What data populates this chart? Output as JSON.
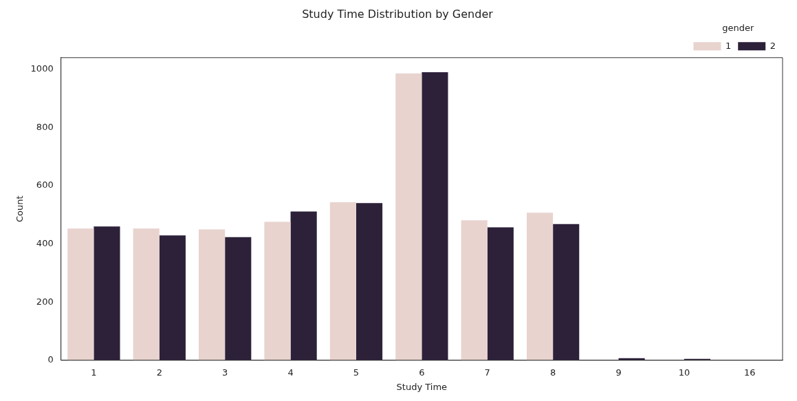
{
  "chart_data": {
    "type": "bar",
    "title": "Study Time Distribution by Gender",
    "xlabel": "Study Time",
    "ylabel": "Count",
    "legend_title": "gender",
    "categories": [
      "1",
      "2",
      "3",
      "4",
      "5",
      "6",
      "7",
      "8",
      "9",
      "10",
      "16"
    ],
    "series": [
      {
        "name": "1",
        "color": "#e8d3cf",
        "values": [
          453,
          453,
          450,
          476,
          543,
          986,
          481,
          507,
          null,
          null,
          null
        ]
      },
      {
        "name": "2",
        "color": "#2d213a",
        "values": [
          460,
          429,
          423,
          511,
          540,
          990,
          457,
          468,
          7,
          5,
          2
        ]
      }
    ],
    "ylim": [
      0,
      1040
    ],
    "yticks": [
      0,
      200,
      400,
      600,
      800,
      1000
    ],
    "grid": false,
    "legend": "top right"
  }
}
